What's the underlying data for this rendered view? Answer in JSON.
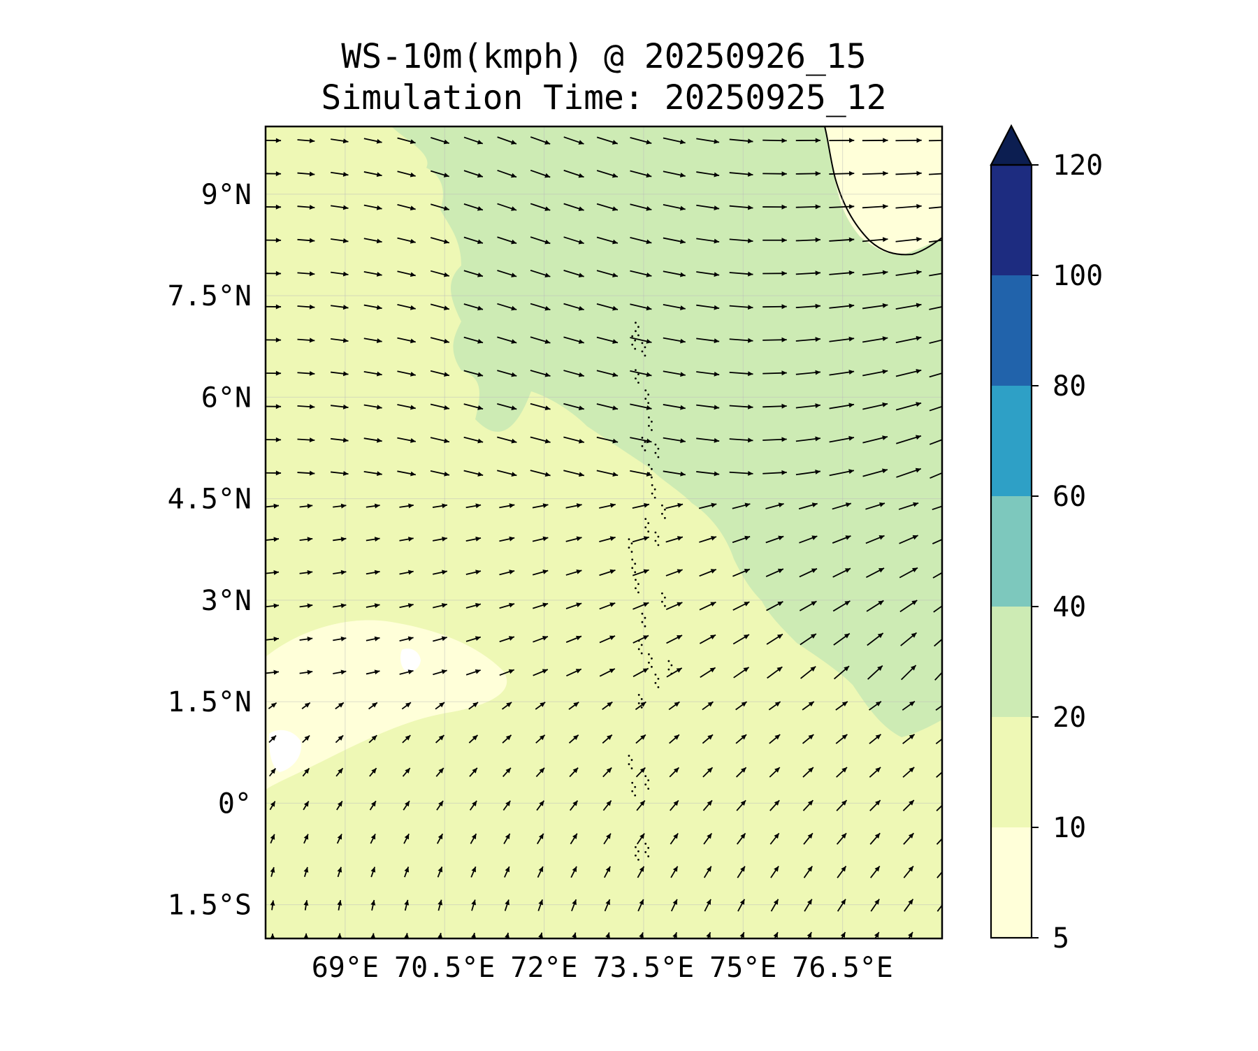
{
  "title": {
    "line1": "WS-10m(kmph) @ 20250926_15",
    "line2": "Simulation Time: 20250925_12"
  },
  "map": {
    "lon_range": [
      67.8,
      78.0
    ],
    "lat_range": [
      -2.0,
      10.0
    ],
    "x_ticks": [
      {
        "value": 69.0,
        "label": "69°E"
      },
      {
        "value": 70.5,
        "label": "70.5°E"
      },
      {
        "value": 72.0,
        "label": "72°E"
      },
      {
        "value": 73.5,
        "label": "73.5°E"
      },
      {
        "value": 75.0,
        "label": "75°E"
      },
      {
        "value": 76.5,
        "label": "76.5°E"
      }
    ],
    "y_ticks": [
      {
        "value": 9.0,
        "label": "9°N"
      },
      {
        "value": 7.5,
        "label": "7.5°N"
      },
      {
        "value": 6.0,
        "label": "6°N"
      },
      {
        "value": 4.5,
        "label": "4.5°N"
      },
      {
        "value": 3.0,
        "label": "3°N"
      },
      {
        "value": 1.5,
        "label": "1.5°N"
      },
      {
        "value": 0.0,
        "label": "0°"
      },
      {
        "value": -1.5,
        "label": "1.5°S"
      }
    ],
    "gridlines": true,
    "coastline_color": "#000000",
    "vector_color": "#000000"
  },
  "colorbar": {
    "position": "right",
    "extend": "max",
    "levels": [
      {
        "from": 5,
        "to": 10,
        "color": "#ffffd9"
      },
      {
        "from": 10,
        "to": 20,
        "color": "#eef8b5"
      },
      {
        "from": 20,
        "to": 40,
        "color": "#cdebb4"
      },
      {
        "from": 40,
        "to": 60,
        "color": "#7dc8bd"
      },
      {
        "from": 60,
        "to": 80,
        "color": "#2ea0c6"
      },
      {
        "from": 80,
        "to": 100,
        "color": "#2163ab"
      },
      {
        "from": 100,
        "to": 120,
        "color": "#1d2c80"
      }
    ],
    "extend_color": "#0c1e51",
    "tick_labels": [
      "5",
      "10",
      "20",
      "40",
      "60",
      "80",
      "100",
      "120"
    ]
  }
}
